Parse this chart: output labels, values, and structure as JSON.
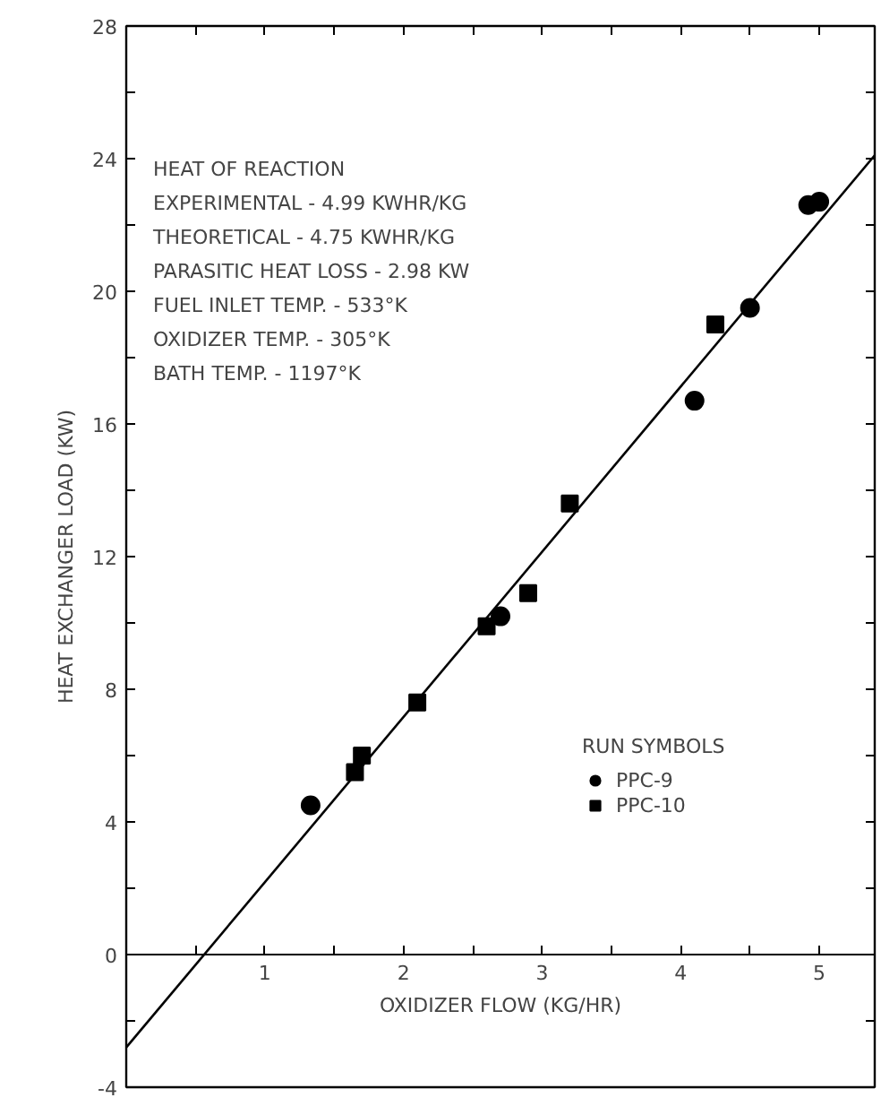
{
  "chart_data": {
    "type": "scatter",
    "xlabel": "OXIDIZER FLOW (KG/HR)",
    "ylabel": "HEAT EXCHANGER LOAD (KW)",
    "legend_title": "RUN SYMBOLS",
    "legend": "bottom right",
    "grid": false,
    "xlim": [
      0,
      5.4
    ],
    "ylim": [
      -4,
      28
    ],
    "xticks": [
      {
        "value": 0.5,
        "label": null
      },
      1,
      {
        "value": 1.5,
        "label": null
      },
      2,
      {
        "value": 2.5,
        "label": null
      },
      3,
      {
        "value": 3.5,
        "label": null
      },
      4,
      {
        "value": 4.5,
        "label": null
      },
      5
    ],
    "yticks": [
      -4,
      {
        "value": -2,
        "label": null
      },
      0,
      {
        "value": 2,
        "label": null
      },
      4,
      {
        "value": 6,
        "label": null
      },
      8,
      {
        "value": 10,
        "label": null
      },
      12,
      {
        "value": 14,
        "label": null
      },
      16,
      {
        "value": 18,
        "label": null
      },
      20,
      {
        "value": 22,
        "label": null
      },
      24,
      {
        "value": 26,
        "label": null
      },
      28
    ],
    "annotations": [
      "HEAT OF REACTION",
      "EXPERIMENTAL - 4.99 KWHR/KG",
      "THEORETICAL - 4.75 KWHR/KG",
      "PARASITIC HEAT LOSS - 2.98 KW",
      "FUEL INLET TEMP. - 533°K",
      "OXIDIZER TEMP. - 305°K",
      "BATH TEMP. - 1197°K"
    ],
    "series": [
      {
        "name": "PPC-9",
        "marker": "circle",
        "color": "#000000",
        "x": [
          1.33,
          2.7,
          4.1,
          4.5,
          4.92,
          5.0
        ],
        "values": [
          4.5,
          10.2,
          16.7,
          19.5,
          22.6,
          22.7
        ]
      },
      {
        "name": "PPC-10",
        "marker": "square",
        "color": "#000000",
        "x": [
          1.65,
          1.7,
          2.1,
          2.6,
          2.9,
          3.2,
          4.25
        ],
        "values": [
          5.5,
          6.0,
          7.6,
          9.9,
          10.9,
          13.6,
          19.0
        ]
      },
      {
        "type": "line",
        "marker": "none",
        "line_style": "solid",
        "color": "#000000",
        "x": [
          0,
          5.4
        ],
        "values": [
          -2.8,
          24.1
        ]
      }
    ]
  }
}
